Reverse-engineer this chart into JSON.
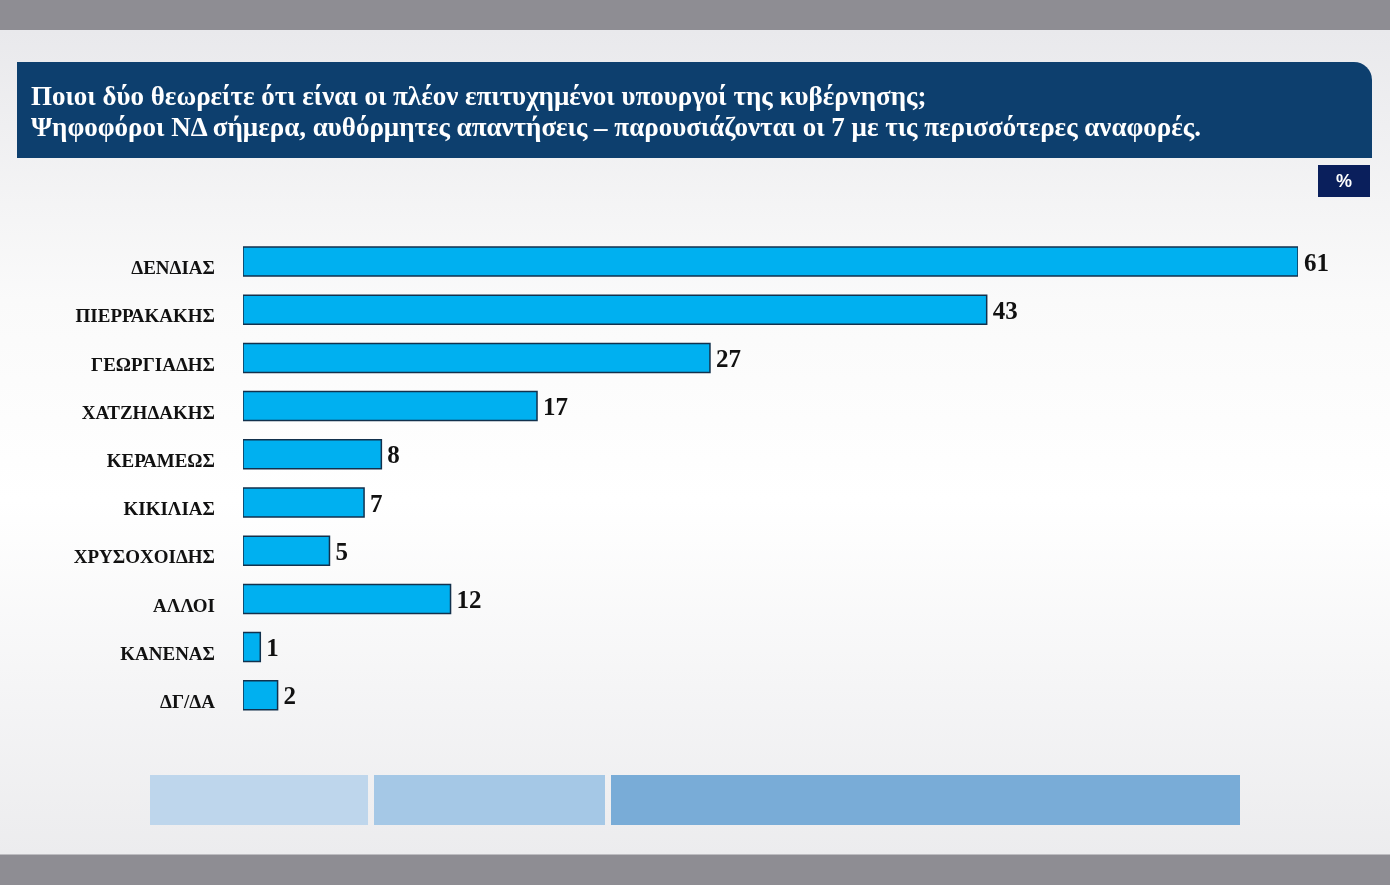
{
  "chart_data": {
    "type": "bar",
    "orientation": "horizontal",
    "title": "Ποιοι δύο θεωρείτε ότι είναι οι πλέον επιτυχημένοι υπουργοί της κυβέρνησης;",
    "subtitle": "Ψηφοφόροι ΝΔ σήμερα, αυθόρμητες απαντήσεις – παρουσιάζονται οι 7 με τις περισσότερες αναφορές.",
    "categories": [
      "ΔΕΝΔΙΑΣ",
      "ΠΙΕΡΡΑΚΑΚΗΣ",
      "ΓΕΩΡΓΙΑΔΗΣ",
      "ΧΑΤΖΗΔΑΚΗΣ",
      "ΚΕΡΑΜΕΩΣ",
      "ΚΙΚΙΛΙΑΣ",
      "ΧΡΥΣΟΧΟΙΔΗΣ",
      "ΑΛΛΟΙ",
      "ΚΑΝΕΝΑΣ",
      "ΔΓ/ΔΑ"
    ],
    "values": [
      61,
      43,
      27,
      17,
      8,
      7,
      5,
      12,
      1,
      2
    ],
    "color": "#00b0f0",
    "xlim": [
      0,
      61
    ],
    "tick_labels": "y",
    "data_labels": true,
    "annotations": [
      "%"
    ]
  }
}
